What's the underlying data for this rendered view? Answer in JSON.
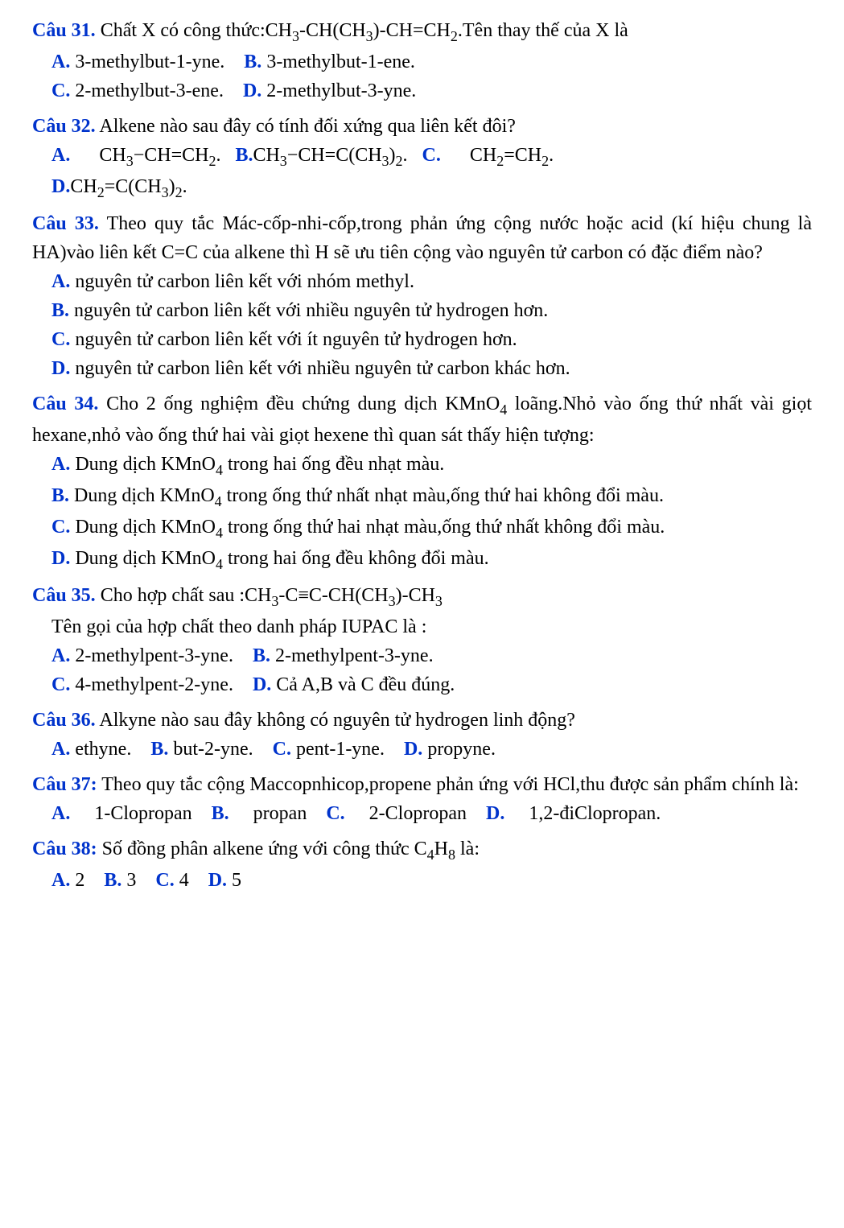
{
  "q31": {
    "label": "Câu 31.",
    "stem1": "Chất X có công thức:CH",
    "stem2": "-CH(CH",
    "stem3": ")-CH=CH",
    "stem4": ".Tên thay thế của X là",
    "optA_label": "A.",
    "optA_text": "3-methylbut-1-yne.",
    "optB_label": "B.",
    "optB_text": "3-methylbut-1-ene.",
    "optC_label": "C.",
    "optC_text": "2-methylbut-3-ene.",
    "optD_label": "D.",
    "optD_text": "2-methylbut-3-yne."
  },
  "q32": {
    "label": "Câu 32.",
    "stem": "Alkene nào sau đây có tính đối xứng qua liên kết đôi?",
    "optA_label": "A.",
    "optA_t1": "CH",
    "optA_t2": "−CH=CH",
    "optA_t3": ".",
    "optB_label": "B.",
    "optB_t1": "CH",
    "optB_t2": "−CH=C(CH",
    "optB_t3": ")",
    "optB_t4": ".",
    "optC_label": "C.",
    "optC_t1": "CH",
    "optC_t2": "=CH",
    "optC_t3": ".",
    "optD_label": "D.",
    "optD_t1": "CH",
    "optD_t2": "=C(CH",
    "optD_t3": ")",
    "optD_t4": "."
  },
  "q33": {
    "label": "Câu 33.",
    "stem": "Theo quy tắc Mác-cốp-nhi-cốp,trong phản ứng cộng nước hoặc acid (kí hiệu chung là HA)vào liên kết C=C của alkene thì H sẽ ưu tiên cộng vào nguyên tử carbon có đặc điểm nào?",
    "optA_label": "A.",
    "optA_text": "nguyên tử carbon liên kết với nhóm methyl.",
    "optB_label": "B.",
    "optB_text": "nguyên tử carbon liên kết với nhiều nguyên tử hydrogen hơn.",
    "optC_label": "C.",
    "optC_text": "nguyên tử carbon liên kết với ít nguyên tử hydrogen hơn.",
    "optD_label": "D.",
    "optD_text": "nguyên tử carbon liên kết với nhiều nguyên tử carbon khác hơn."
  },
  "q34": {
    "label": "Câu 34.",
    "stem1": "Cho 2 ống nghiệm đều chứng dung dịch KMnO",
    "stem2": " loãng.Nhỏ vào ống thứ nhất vài giọt hexane,nhỏ vào ống thứ hai vài giọt hexene thì quan sát thấy hiện tượng:",
    "optA_label": "A.",
    "optA_t1": "Dung dịch KMnO",
    "optA_t2": " trong hai ống đều nhạt màu.",
    "optB_label": "B.",
    "optB_t1": "Dung dịch KMnO",
    "optB_t2": " trong ống thứ nhất nhạt màu,ống thứ hai không đổi màu.",
    "optC_label": "C.",
    "optC_t1": "Dung dịch KMnO",
    "optC_t2": " trong ống thứ hai nhạt màu,ống thứ nhất không đổi màu.",
    "optD_label": "D.",
    "optD_t1": "Dung dịch KMnO",
    "optD_t2": " trong hai ống đều không đổi màu."
  },
  "q35": {
    "label": "Câu 35.",
    "stem1": "Cho hợp chất sau :CH",
    "stem2": "-C≡C-CH(CH",
    "stem3": ")-CH",
    "line2": "Tên gọi của hợp chất theo danh pháp IUPAC là :",
    "optA_label": "A.",
    "optA_text": "2-methylpent-3-yne.",
    "optB_label": "B.",
    "optB_text": "2-methylpent-3-yne.",
    "optC_label": "C.",
    "optC_text": "4-methylpent-2-yne.",
    "optD_label": "D.",
    "optD_text": " Cả A,B và C đều đúng."
  },
  "q36": {
    "label": "Câu 36.",
    "stem": "Alkyne nào sau đây không có nguyên tử hydrogen linh động?",
    "optA_label": "A.",
    "optA_text": "ethyne.",
    "optB_label": "B.",
    "optB_text": "but-2-yne.",
    "optC_label": "C.",
    "optC_text": "pent-1-yne.",
    "optD_label": "D.",
    "optD_text": "propyne."
  },
  "q37": {
    "label": "Câu 37:",
    "stem": "Theo quy tắc cộng Maccopnhicop,propene phản ứng với HCl,thu được sản phẩm chính là:",
    "optA_label": "A.",
    "optA_text": "1-Clopropan",
    "optB_label": "B.",
    "optB_text": "propan",
    "optC_label": "C.",
    "optC_text": "2-Clopropan",
    "optD_label": "D.",
    "optD_text": "1,2-điClopropan."
  },
  "q38": {
    "label": "Câu 38:",
    "stem1": "Số đồng phân alkene ứng với công thức C",
    "stem2": "H",
    "stem3": " là:",
    "optA_label": "A.",
    "optA_text": "2",
    "optB_label": "B.",
    "optB_text": "3",
    "optC_label": "C.",
    "optC_text": "4",
    "optD_label": "D.",
    "optD_text": "5"
  },
  "sub3": "3",
  "sub2": "2",
  "sub4": "4",
  "sub8": "8"
}
